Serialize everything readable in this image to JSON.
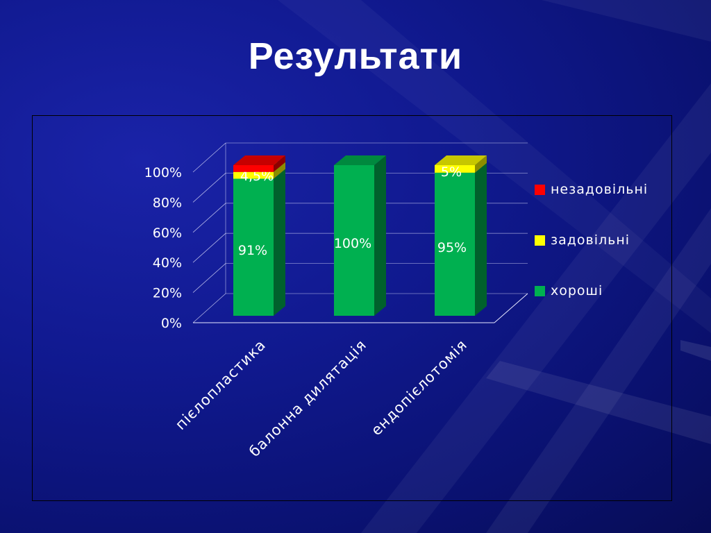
{
  "slide": {
    "title": "Результати"
  },
  "colors": {
    "good": "#00b050",
    "satisfactory": "#ffff00",
    "unsatisfactory": "#ff0000",
    "axis": "#e8e8ff",
    "text": "#ffffff"
  },
  "chart_data": {
    "type": "bar",
    "stacked": true,
    "three_d": true,
    "categories": [
      "пієлопластика",
      "балонна дилятація",
      "ендопієлотомія"
    ],
    "series": [
      {
        "name": "хороші",
        "values": [
          91,
          100,
          95
        ],
        "labels": [
          "91%",
          "100%",
          "95%"
        ],
        "color": "#00b050"
      },
      {
        "name": "задовільні",
        "values": [
          4.5,
          0,
          5
        ],
        "labels": [
          "4,5%",
          "",
          "5%"
        ],
        "color": "#ffff00"
      },
      {
        "name": "незадовільні",
        "values": [
          4.5,
          0,
          0
        ],
        "labels": [
          "",
          "",
          ""
        ],
        "color": "#ff0000"
      }
    ],
    "ylim": [
      0,
      100
    ],
    "yticks": [
      "0%",
      "20%",
      "40%",
      "60%",
      "80%",
      "100%"
    ],
    "legend_position": "right",
    "legend_order": [
      "незадовільні",
      "задовільні",
      "хороші"
    ],
    "grid": true
  }
}
